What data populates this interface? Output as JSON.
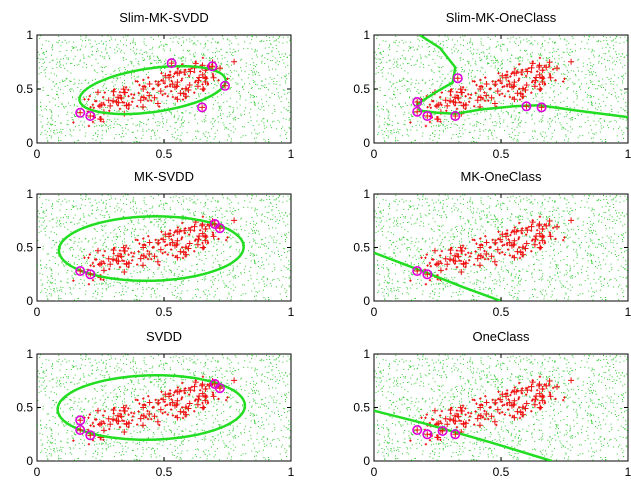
{
  "figure": {
    "background": "#ffffff",
    "colors": {
      "background_points": "#33cc33",
      "target_points": "#ee1111",
      "boundary": "#22dd22",
      "support_vectors": "#dd00dd"
    }
  },
  "chart_data": [
    {
      "type": "scatter",
      "title": "Slim-MK-SVDD",
      "xlim": [
        0,
        1
      ],
      "ylim": [
        0,
        1
      ],
      "xticks": [
        "0",
        "0.5",
        "1"
      ],
      "yticks": [
        "0",
        "0.5",
        "1"
      ],
      "boundary": {
        "kind": "ellipse",
        "cx": 0.455,
        "cy": 0.49,
        "rx": 0.31,
        "ry": 0.19,
        "angle_deg": 28
      },
      "support_vectors": [
        [
          0.17,
          0.28
        ],
        [
          0.21,
          0.25
        ],
        [
          0.53,
          0.74
        ],
        [
          0.69,
          0.71
        ],
        [
          0.74,
          0.53
        ],
        [
          0.65,
          0.33
        ]
      ]
    },
    {
      "type": "scatter",
      "title": "Slim-MK-OneClass",
      "xlim": [
        0,
        1
      ],
      "ylim": [
        0,
        1
      ],
      "xticks": [
        "0",
        "0.5",
        "1"
      ],
      "yticks": [
        "0",
        "0.5",
        "1"
      ],
      "boundary": {
        "kind": "polyline",
        "points": [
          [
            0.18,
            1.0
          ],
          [
            0.26,
            0.88
          ],
          [
            0.32,
            0.7
          ],
          [
            0.31,
            0.56
          ],
          [
            0.25,
            0.48
          ],
          [
            0.17,
            0.36
          ],
          [
            0.18,
            0.3
          ],
          [
            0.25,
            0.28
          ],
          [
            0.32,
            0.27
          ],
          [
            0.42,
            0.31
          ],
          [
            0.55,
            0.34
          ],
          [
            0.65,
            0.35
          ],
          [
            0.8,
            0.3
          ],
          [
            1.0,
            0.24
          ]
        ]
      },
      "support_vectors": [
        [
          0.17,
          0.38
        ],
        [
          0.17,
          0.29
        ],
        [
          0.21,
          0.25
        ],
        [
          0.32,
          0.25
        ],
        [
          0.33,
          0.6
        ],
        [
          0.6,
          0.34
        ],
        [
          0.66,
          0.33
        ]
      ]
    },
    {
      "type": "scatter",
      "title": "MK-SVDD",
      "xlim": [
        0,
        1
      ],
      "ylim": [
        0,
        1
      ],
      "xticks": [
        "0",
        "0.5",
        "1"
      ],
      "yticks": [
        "0",
        "0.5",
        "1"
      ],
      "boundary": {
        "kind": "ellipse",
        "cx": 0.45,
        "cy": 0.49,
        "rx": 0.365,
        "ry": 0.3,
        "angle_deg": 8
      },
      "support_vectors": [
        [
          0.17,
          0.28
        ],
        [
          0.21,
          0.25
        ],
        [
          0.7,
          0.72
        ],
        [
          0.72,
          0.68
        ]
      ]
    },
    {
      "type": "scatter",
      "title": "MK-OneClass",
      "xlim": [
        0,
        1
      ],
      "ylim": [
        0,
        1
      ],
      "xticks": [
        "0",
        "0.5",
        "1"
      ],
      "yticks": [
        "0",
        "0.5",
        "1"
      ],
      "boundary": {
        "kind": "polyline",
        "points": [
          [
            0.0,
            0.45
          ],
          [
            0.2,
            0.27
          ],
          [
            0.35,
            0.13
          ],
          [
            0.5,
            0.0
          ]
        ]
      },
      "support_vectors": [
        [
          0.17,
          0.28
        ],
        [
          0.21,
          0.25
        ]
      ]
    },
    {
      "type": "scatter",
      "title": "SVDD",
      "xlim": [
        0,
        1
      ],
      "ylim": [
        0,
        1
      ],
      "xticks": [
        "0",
        "0.5",
        "1"
      ],
      "yticks": [
        "0",
        "0.5",
        "1"
      ],
      "boundary": {
        "kind": "ellipse",
        "cx": 0.45,
        "cy": 0.5,
        "rx": 0.37,
        "ry": 0.3,
        "angle_deg": 8
      },
      "support_vectors": [
        [
          0.17,
          0.38
        ],
        [
          0.17,
          0.29
        ],
        [
          0.21,
          0.24
        ],
        [
          0.7,
          0.72
        ],
        [
          0.72,
          0.68
        ]
      ]
    },
    {
      "type": "scatter",
      "title": "OneClass",
      "xlim": [
        0,
        1
      ],
      "ylim": [
        0,
        1
      ],
      "xticks": [
        "0",
        "0.5",
        "1"
      ],
      "yticks": [
        "0",
        "0.5",
        "1"
      ],
      "boundary": {
        "kind": "polyline",
        "points": [
          [
            0.0,
            0.47
          ],
          [
            0.2,
            0.35
          ],
          [
            0.45,
            0.18
          ],
          [
            0.7,
            0.0
          ]
        ]
      },
      "support_vectors": [
        [
          0.17,
          0.29
        ],
        [
          0.21,
          0.25
        ],
        [
          0.27,
          0.28
        ],
        [
          0.32,
          0.25
        ]
      ]
    }
  ]
}
